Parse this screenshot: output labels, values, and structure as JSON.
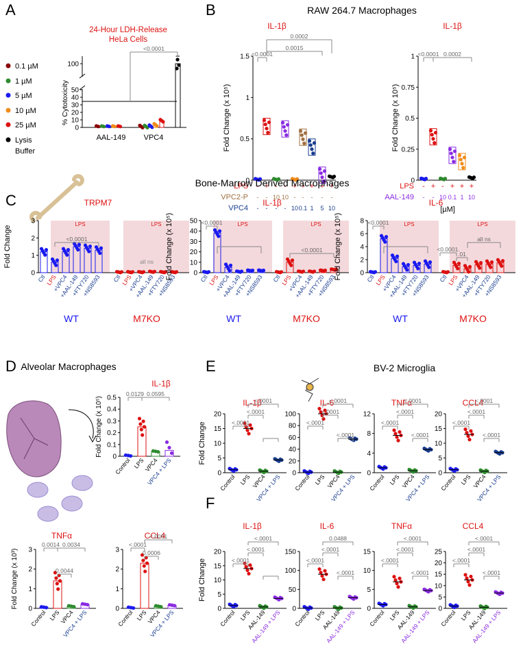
{
  "panel_letters": {
    "A": "A",
    "B": "B",
    "C": "C",
    "D": "D",
    "E": "E",
    "F": "F"
  },
  "colors": {
    "red": "#dd1111",
    "blue": "#1a1af0",
    "green": "#2e8b2e",
    "purple": "#8a2be2",
    "orange": "#f08c1a",
    "darkred": "#8b0000",
    "brown": "#a07040",
    "navy": "#1a3d8f",
    "gray": "#808080",
    "pink": "#f4d9dc"
  },
  "panelA": {
    "title": "24-Hour LDH-Release",
    "subtitle": "HeLa Cells",
    "legend": [
      "0.1 µM",
      "1 µM",
      "5 µM",
      "10 µM",
      "25 µM",
      "Lysis",
      "Buffer"
    ],
    "ylabel": "% Cytotoxicity",
    "yticks": [
      "0",
      "10",
      "20",
      "30",
      "40",
      "50",
      "100"
    ],
    "xlabels": [
      "AAL-149",
      "VPC4"
    ],
    "pvalue": "<0.0001"
  },
  "panelB": {
    "title": "RAW 264.7 Macrophages",
    "left_title": "IL-1β",
    "right_title": "IL-1β",
    "ylabel": "Fold Change (x 10⁵)",
    "left_yticks": [
      "0",
      "0.5",
      "1",
      "1.5"
    ],
    "right_yticks": [
      "0",
      "0.25",
      "0.5",
      "0.75",
      "1"
    ],
    "row_labels": [
      "LPS",
      "VPC2-P",
      "VPC4"
    ],
    "right_row_labels": [
      "LPS",
      "AAL-149"
    ],
    "lps_row": [
      "-",
      "+",
      "-",
      "-",
      "+",
      "+",
      "+",
      "+",
      "+"
    ],
    "vpc2p_row": [
      "-",
      "-",
      "10",
      "10",
      "-",
      "-",
      "-",
      "-",
      "-"
    ],
    "vpc4_row": [
      "-",
      "-",
      "-",
      "-",
      "10",
      "0.1",
      "1",
      "5",
      "10"
    ],
    "right_lps_row": [
      "-",
      "+",
      "-",
      "+",
      "+",
      "+"
    ],
    "right_aal_row": [
      "-",
      "-",
      "10",
      "0.1",
      "1",
      "10"
    ],
    "unit": "[µM]",
    "pvalues_left": [
      "<0.0001",
      "0.0002",
      "0.0015"
    ],
    "pvalues_right": [
      "<0.0001",
      "0.0002"
    ]
  },
  "panelC": {
    "title": "Bone-Marrow Derived Macrophages",
    "sub_titles": [
      "TRPM7",
      "IL-1β",
      "IL-6"
    ],
    "ylabels": [
      "Fold Change",
      "Fold Change (x 10⁵)",
      "Fold Change (x 10⁵)"
    ],
    "yticks_trpm7": [
      "0",
      "1",
      "2",
      "3"
    ],
    "yticks_il1b": [
      "0",
      "10",
      "20",
      "30",
      "40",
      "50"
    ],
    "yticks_il6": [
      "0",
      "2",
      "4",
      "6",
      "8"
    ],
    "lps_label": "LPS",
    "xlabels": [
      "Ctl",
      "LPS",
      "+VPC4",
      "+AAL-149",
      "+FTY720",
      "+NS8593"
    ],
    "genotypes": [
      "WT",
      "M7KO"
    ],
    "all_ns": "all ns",
    "pvalues": [
      "<0.0001",
      "<0.0001",
      "<0.0001",
      "<0.0001",
      ".01"
    ]
  },
  "panelD": {
    "title": "Alveolar Macrophages",
    "charts": [
      "IL-1β",
      "TNFα",
      "CCL4"
    ],
    "ylabel_il1b": "Fold Change (x 10⁵)",
    "ylabel_tnf": "Fold Change (x 10³)",
    "yticks_il1b": [
      "0",
      "0.1",
      "0.2",
      "0.3",
      "0.4",
      "0.5"
    ],
    "yticks_tnf": [
      "0",
      "1",
      "2",
      "3"
    ],
    "yticks_ccl4": [
      "0",
      "1",
      "2",
      "3"
    ],
    "xlabels": [
      "Control",
      "LPS",
      "VPC4",
      "VPC4 + LPS"
    ],
    "pvalues_il1b": [
      "0.0129",
      "0.0595"
    ],
    "pvalues_tnf": [
      "0.0014",
      "0.0034",
      "0.0044"
    ],
    "pvalues_ccl4": [
      "<.0001",
      "<.0001",
      "0.0006"
    ]
  },
  "panelE": {
    "title": "BV-2 Microglia",
    "charts": [
      "IL-1β",
      "IL-6",
      "TNFα",
      "CCL4"
    ],
    "ylabel": "Fold Change",
    "yticks": [
      [
        "0",
        "5",
        "10",
        "15",
        "20"
      ],
      [
        "0",
        "20",
        "40",
        "60",
        "80",
        "100"
      ],
      [
        "0",
        "4",
        "8",
        "12"
      ],
      [
        "0",
        "5",
        "10",
        "15",
        "20"
      ]
    ],
    "xlabels": [
      "Control",
      "LPS",
      "VPC4",
      "VPC4 + LPS"
    ],
    "pvalue": "<.0001"
  },
  "panelF": {
    "charts": [
      "IL-1β",
      "IL-6",
      "TNFα",
      "CCL4"
    ],
    "ylabel": "Fold Change",
    "yticks": [
      [
        "0",
        "5",
        "10",
        "15",
        "20"
      ],
      [
        "0",
        "50",
        "100",
        "150"
      ],
      [
        "0",
        "5",
        "10",
        "15"
      ],
      [
        "0",
        "5",
        "10",
        "15",
        "20",
        "25"
      ]
    ],
    "xlabels": [
      "Control",
      "LPS",
      "AAL-149",
      "AAL-149 + LPS"
    ],
    "pvalue": "<.0001",
    "pvalue_il6": "0.0488"
  },
  "chart_data": [
    {
      "type": "scatter",
      "id": "A",
      "title": "24-Hour LDH-Release HeLa Cells",
      "ylabel": "% Cytotoxicity",
      "categories": [
        "AAL-149",
        "VPC4",
        "Lysis Buffer"
      ],
      "series": [
        {
          "name": "0.1 µM",
          "values": [
            0.5,
            0.5
          ]
        },
        {
          "name": "1 µM",
          "values": [
            0.5,
            0.5
          ]
        },
        {
          "name": "5 µM",
          "values": [
            0.6,
            0.8
          ]
        },
        {
          "name": "10 µM",
          "values": [
            0.8,
            1.5
          ]
        },
        {
          "name": "25 µM",
          "values": [
            1.0,
            4.0
          ]
        },
        {
          "name": "Lysis Buffer",
          "values": [
            100
          ]
        }
      ]
    },
    {
      "type": "bar",
      "id": "B-left",
      "title": "IL-1β",
      "ylabel": "Fold Change (x 10⁵)",
      "ylim": [
        0,
        1.5
      ],
      "values": [
        0.01,
        0.65,
        0.01,
        0.62,
        0.01,
        0.52,
        0.4,
        0.06,
        0.04
      ]
    },
    {
      "type": "bar",
      "id": "B-right",
      "title": "IL-1β",
      "ylabel": "Fold Change (x 10⁵)",
      "ylim": [
        0,
        1
      ],
      "values": [
        0.01,
        0.35,
        0.01,
        0.2,
        0.15,
        0.02
      ]
    },
    {
      "type": "bar",
      "id": "C-TRPM7",
      "title": "TRPM7",
      "ylim": [
        0,
        3
      ],
      "categories": [
        "Ctl",
        "LPS",
        "+VPC4",
        "+AAL-149",
        "+FTY720",
        "+NS8593"
      ],
      "series": [
        {
          "name": "WT",
          "values": [
            1.2,
            0.6,
            1.2,
            1.5,
            1.4,
            1.3
          ]
        },
        {
          "name": "M7KO",
          "values": [
            0.02,
            0.02,
            0.03,
            0.05,
            0.03,
            0.02
          ]
        }
      ]
    },
    {
      "type": "bar",
      "id": "C-IL1b",
      "title": "IL-1β",
      "ylim": [
        0,
        50
      ],
      "categories": [
        "Ctl",
        "LPS",
        "+VPC4",
        "+AAL-149",
        "+FTY720",
        "+NS8593"
      ],
      "series": [
        {
          "name": "WT",
          "values": [
            0.2,
            38,
            5,
            1,
            2,
            2
          ]
        },
        {
          "name": "M7KO",
          "values": [
            0.2,
            10,
            1,
            1,
            2,
            3
          ]
        }
      ]
    },
    {
      "type": "bar",
      "id": "C-IL6",
      "title": "IL-6",
      "ylim": [
        0,
        8
      ],
      "categories": [
        "Ctl",
        "LPS",
        "+VPC4",
        "+AAL-149",
        "+FTY720",
        "+NS8593"
      ],
      "series": [
        {
          "name": "WT",
          "values": [
            0.05,
            5.2,
            2.2,
            0.9,
            1.1,
            1.3
          ]
        },
        {
          "name": "M7KO",
          "values": [
            0.05,
            1.1,
            0.6,
            1.2,
            1.3,
            1.5
          ]
        }
      ]
    },
    {
      "type": "bar",
      "id": "D-IL1b",
      "title": "IL-1β",
      "ylim": [
        0,
        0.5
      ],
      "categories": [
        "Control",
        "LPS",
        "VPC4",
        "VPC4 + LPS"
      ],
      "values": [
        0.001,
        0.25,
        0.04,
        0.05
      ]
    },
    {
      "type": "bar",
      "id": "D-TNFa",
      "title": "TNFα",
      "ylim": [
        0,
        3
      ],
      "categories": [
        "Control",
        "LPS",
        "VPC4",
        "VPC4 + LPS"
      ],
      "values": [
        0.05,
        1.4,
        0.1,
        0.2
      ]
    },
    {
      "type": "bar",
      "id": "D-CCL4",
      "title": "CCL4",
      "ylim": [
        0,
        3
      ],
      "categories": [
        "Control",
        "LPS",
        "VPC4",
        "VPC4 + LPS"
      ],
      "values": [
        0.01,
        2.3,
        0.1,
        0.15
      ]
    },
    {
      "type": "scatter",
      "id": "E",
      "categories": [
        "Control",
        "LPS",
        "VPC4",
        "VPC4 + LPS"
      ],
      "series": [
        {
          "name": "IL-1β",
          "values": [
            1,
            15,
            0.5,
            4.3
          ]
        },
        {
          "name": "IL-6",
          "values": [
            1,
            100,
            1,
            57
          ]
        },
        {
          "name": "TNFα",
          "values": [
            1,
            7.6,
            0.4,
            4.7
          ]
        },
        {
          "name": "CCL4",
          "values": [
            1,
            13,
            0.5,
            6.8
          ]
        }
      ]
    },
    {
      "type": "scatter",
      "id": "F",
      "categories": [
        "Control",
        "LPS",
        "AAL-149",
        "AAL-149 + LPS"
      ],
      "series": [
        {
          "name": "IL-1β",
          "values": [
            1,
            14,
            0.5,
            3.5
          ]
        },
        {
          "name": "IL-6",
          "values": [
            1,
            90,
            1,
            28
          ]
        },
        {
          "name": "TNFα",
          "values": [
            1,
            7,
            0.4,
            4.7
          ]
        },
        {
          "name": "CCL4",
          "values": [
            1,
            12.5,
            0.5,
            6.7
          ]
        }
      ]
    }
  ]
}
